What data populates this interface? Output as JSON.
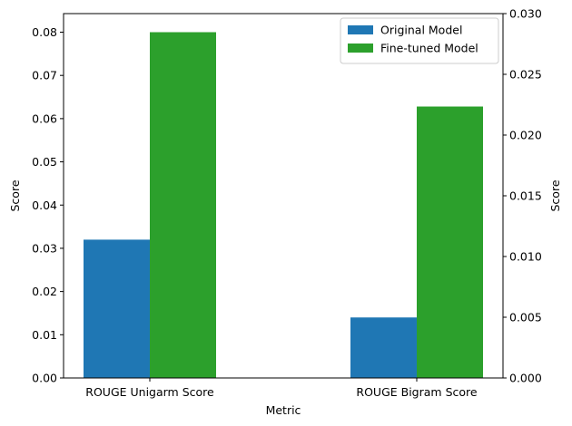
{
  "chart_data": {
    "type": "bar",
    "categories": [
      "ROUGE Unigarm Score",
      "ROUGE Bigram Score"
    ],
    "series": [
      {
        "name": "Original Model",
        "values": [
          0.032,
          0.014
        ],
        "color": "#1f77b4",
        "axis": "left"
      },
      {
        "name": "Fine-tuned Model",
        "values": [
          0.08,
          0.0628
        ],
        "color": "#2ca02c",
        "axis": "left"
      }
    ],
    "xlabel": "Metric",
    "ylabel": "Score",
    "ylabel_right": "Score",
    "ylim": [
      0,
      0.0843
    ],
    "ylim_right": [
      0,
      0.03
    ],
    "yticks": [
      "0.00",
      "0.01",
      "0.02",
      "0.03",
      "0.04",
      "0.05",
      "0.06",
      "0.07",
      "0.08"
    ],
    "yticks_right": [
      "0.000",
      "0.005",
      "0.010",
      "0.015",
      "0.020",
      "0.025",
      "0.030"
    ],
    "grid": false,
    "legend_position": "top-right"
  }
}
